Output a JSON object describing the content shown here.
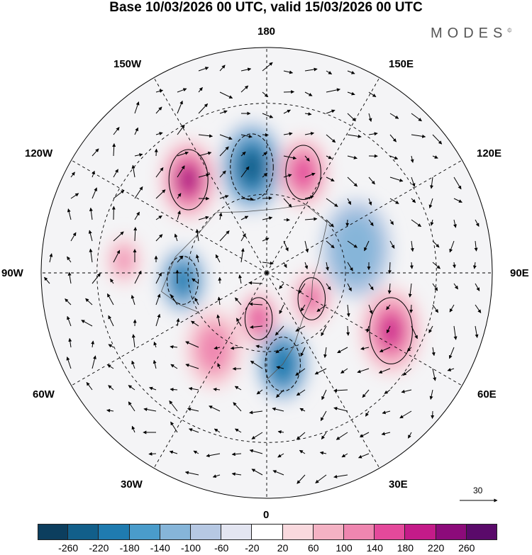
{
  "title": "Base 10/03/2026 00 UTC, valid 15/03/2026 00 UTC",
  "brand": "MODES",
  "brand_mark": "©",
  "longitude_labels": {
    "top": "180",
    "bottom": "0",
    "left": "90W",
    "right": "90E",
    "upper_left": "150W",
    "upper_right": "150E",
    "mid_upper_left": "120W",
    "mid_upper_right": "120E",
    "mid_lower_left": "60W",
    "mid_lower_right": "60E",
    "lower_left": "30W",
    "lower_right": "30E"
  },
  "vector_scale": {
    "label": "30"
  },
  "colorbar": {
    "colors": [
      "#0c3e5e",
      "#125f8a",
      "#1f7bb0",
      "#4a9ccb",
      "#86b5d9",
      "#b6c8e3",
      "#e3e5f1",
      "#ffffff",
      "#f9d9de",
      "#f4b2c4",
      "#ef86b0",
      "#e4499b",
      "#c41b89",
      "#8c0b7a",
      "#5a0a6a"
    ],
    "ticks": [
      "-260",
      "-220",
      "-180",
      "-140",
      "-100",
      "-60",
      "-20",
      "20",
      "60",
      "100",
      "140",
      "180",
      "220",
      "260"
    ]
  },
  "anomalies": [
    {
      "name": "blue-pacific",
      "lon": -172,
      "lat": 50,
      "value": -240,
      "r": 55
    },
    {
      "name": "pink-alaska",
      "lon": -140,
      "lat": 45,
      "value": 230,
      "r": 50
    },
    {
      "name": "pink-kamchatka",
      "lon": 160,
      "lat": 50,
      "value": 180,
      "r": 45
    },
    {
      "name": "blue-hudson",
      "lon": -85,
      "lat": 58,
      "value": -200,
      "r": 40
    },
    {
      "name": "pink-atlantic",
      "lon": -35,
      "lat": 55,
      "value": 130,
      "r": 50
    },
    {
      "name": "pink-greenland",
      "lon": -10,
      "lat": 72,
      "value": 170,
      "r": 35
    },
    {
      "name": "blue-europe",
      "lon": 10,
      "lat": 55,
      "value": -210,
      "r": 45
    },
    {
      "name": "pink-centralasia",
      "lon": 65,
      "lat": 40,
      "value": 190,
      "r": 55
    },
    {
      "name": "pink-westsiberia",
      "lon": 60,
      "lat": 70,
      "value": 160,
      "r": 35
    },
    {
      "name": "blue-eastsiberia",
      "lon": 105,
      "lat": 55,
      "value": -110,
      "r": 60
    },
    {
      "name": "pink-canada",
      "lon": -95,
      "lat": 38,
      "value": 120,
      "r": 30
    }
  ]
}
